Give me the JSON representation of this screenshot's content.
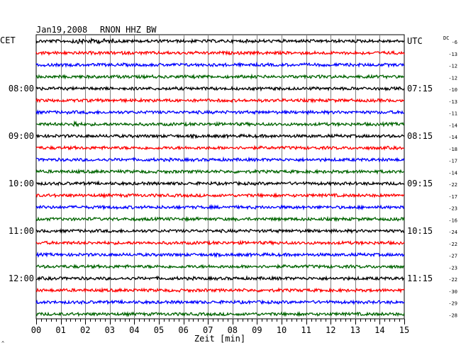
{
  "header": {
    "date": "Jan19,2008",
    "station": "RNON HHZ BW",
    "left_zone": "CET",
    "right_zone": "UTC",
    "dc_label": "DC"
  },
  "chart_data": {
    "type": "line",
    "title": "Jan19,2008   RNON HHZ BW",
    "xlabel": "Zeit [min]",
    "xlim": [
      0,
      15
    ],
    "x_tick_labels": [
      "00",
      "01",
      "02",
      "03",
      "04",
      "05",
      "06",
      "07",
      "08",
      "09",
      "10",
      "11",
      "12",
      "13",
      "14",
      "15"
    ],
    "trace_colors": [
      "#000000",
      "#ff0000",
      "#0000ff",
      "#006400"
    ],
    "left_time_labels": [
      {
        "row": 4,
        "label": "08:00"
      },
      {
        "row": 8,
        "label": "09:00"
      },
      {
        "row": 12,
        "label": "10:00"
      },
      {
        "row": 16,
        "label": "11:00"
      },
      {
        "row": 20,
        "label": "12:00"
      }
    ],
    "right_time_labels": [
      {
        "row": 0,
        "label": "UTC"
      },
      {
        "row": 4,
        "label": "07:15"
      },
      {
        "row": 8,
        "label": "08:15"
      },
      {
        "row": 12,
        "label": "09:15"
      },
      {
        "row": 16,
        "label": "10:15"
      },
      {
        "row": 20,
        "label": "11:15"
      }
    ],
    "dc_offsets": [
      "-6",
      "-13",
      "-12",
      "-12",
      "-10",
      "-13",
      "-11",
      "-14",
      "-14",
      "-18",
      "-17",
      "-14",
      "-22",
      "-17",
      "-23",
      "-16",
      "-24",
      "-22",
      "-27",
      "-23",
      "-22",
      "-30",
      "-29",
      "-28"
    ]
  },
  "corner_mark": "^"
}
